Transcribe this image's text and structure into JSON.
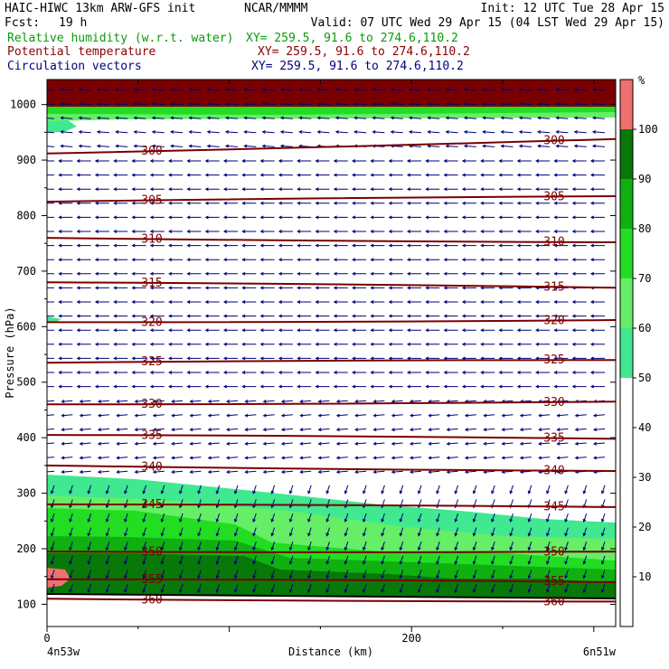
{
  "header": {
    "model": "HAIC-HIWC 13km ARW-GFS init",
    "org": "NCAR/MMMM",
    "init": "Init: 12 UTC Tue 28 Apr 15",
    "fcst_label": "Fcst:",
    "fcst_value": "19 h",
    "valid": "Valid: 07 UTC Wed 29 Apr 15 (04 LST Wed 29 Apr 15)",
    "fields": [
      {
        "name": "Relative humidity (w.r.t. water)",
        "xy": "XY= 259.5, 91.6 to 274.6,110.2",
        "color": "#0a9a0a"
      },
      {
        "name": "Potential temperature",
        "xy": "XY= 259.5, 91.6 to 274.6,110.2",
        "color": "#8b0000"
      },
      {
        "name": "Circulation vectors",
        "xy": "XY= 259.5, 91.6 to 274.6,110.2",
        "color": "#000080"
      }
    ]
  },
  "chart_data": {
    "type": "heatmap",
    "title": "Relative humidity (w.r.t. water)",
    "xlabel": "Distance (km)",
    "ylabel": "Pressure (hPa)",
    "xlim": [
      0,
      312
    ],
    "ylim": [
      1045,
      60
    ],
    "x_ticks": [
      0,
      200
    ],
    "y_ticks": [
      100,
      200,
      300,
      400,
      500,
      600,
      700,
      800,
      900,
      1000
    ],
    "endpoint_labels": [
      "4n53w",
      "6n51w"
    ],
    "colorbar": {
      "unit": "%",
      "ticks": [
        10,
        20,
        30,
        40,
        50,
        60,
        70,
        80,
        90,
        100
      ],
      "levels": [
        {
          "min": 0,
          "max": 50,
          "color": "#ffffff"
        },
        {
          "min": 50,
          "max": 60,
          "color": "#40e890"
        },
        {
          "min": 60,
          "max": 70,
          "color": "#66ee66"
        },
        {
          "min": 70,
          "max": 80,
          "color": "#22dd22"
        },
        {
          "min": 80,
          "max": 90,
          "color": "#10b010"
        },
        {
          "min": 90,
          "max": 100,
          "color": "#087808"
        },
        {
          "min": 100,
          "max": 110,
          "color": "#f07070"
        }
      ]
    },
    "theta_contours": [
      {
        "value": 360,
        "p_left": 110,
        "p_right": 105
      },
      {
        "value": 355,
        "p_left": 145,
        "p_right": 140
      },
      {
        "value": 350,
        "p_left": 195,
        "p_right": 195
      },
      {
        "value": 345,
        "p_left": 280,
        "p_right": 275
      },
      {
        "value": 340,
        "p_left": 350,
        "p_right": 340
      },
      {
        "value": 335,
        "p_left": 405,
        "p_right": 398
      },
      {
        "value": 330,
        "p_left": 460,
        "p_right": 465
      },
      {
        "value": 325,
        "p_left": 535,
        "p_right": 540
      },
      {
        "value": 320,
        "p_left": 608,
        "p_right": 612
      },
      {
        "value": 315,
        "p_left": 680,
        "p_right": 670
      },
      {
        "value": 310,
        "p_left": 760,
        "p_right": 752
      },
      {
        "value": 305,
        "p_left": 825,
        "p_right": 835
      },
      {
        "value": 300,
        "p_left": 912,
        "p_right": 938
      }
    ],
    "series": [
      {
        "name": "Relative humidity (w.r.t. water)"
      },
      {
        "name": "Potential temperature"
      },
      {
        "name": "Circulation vectors"
      }
    ]
  }
}
